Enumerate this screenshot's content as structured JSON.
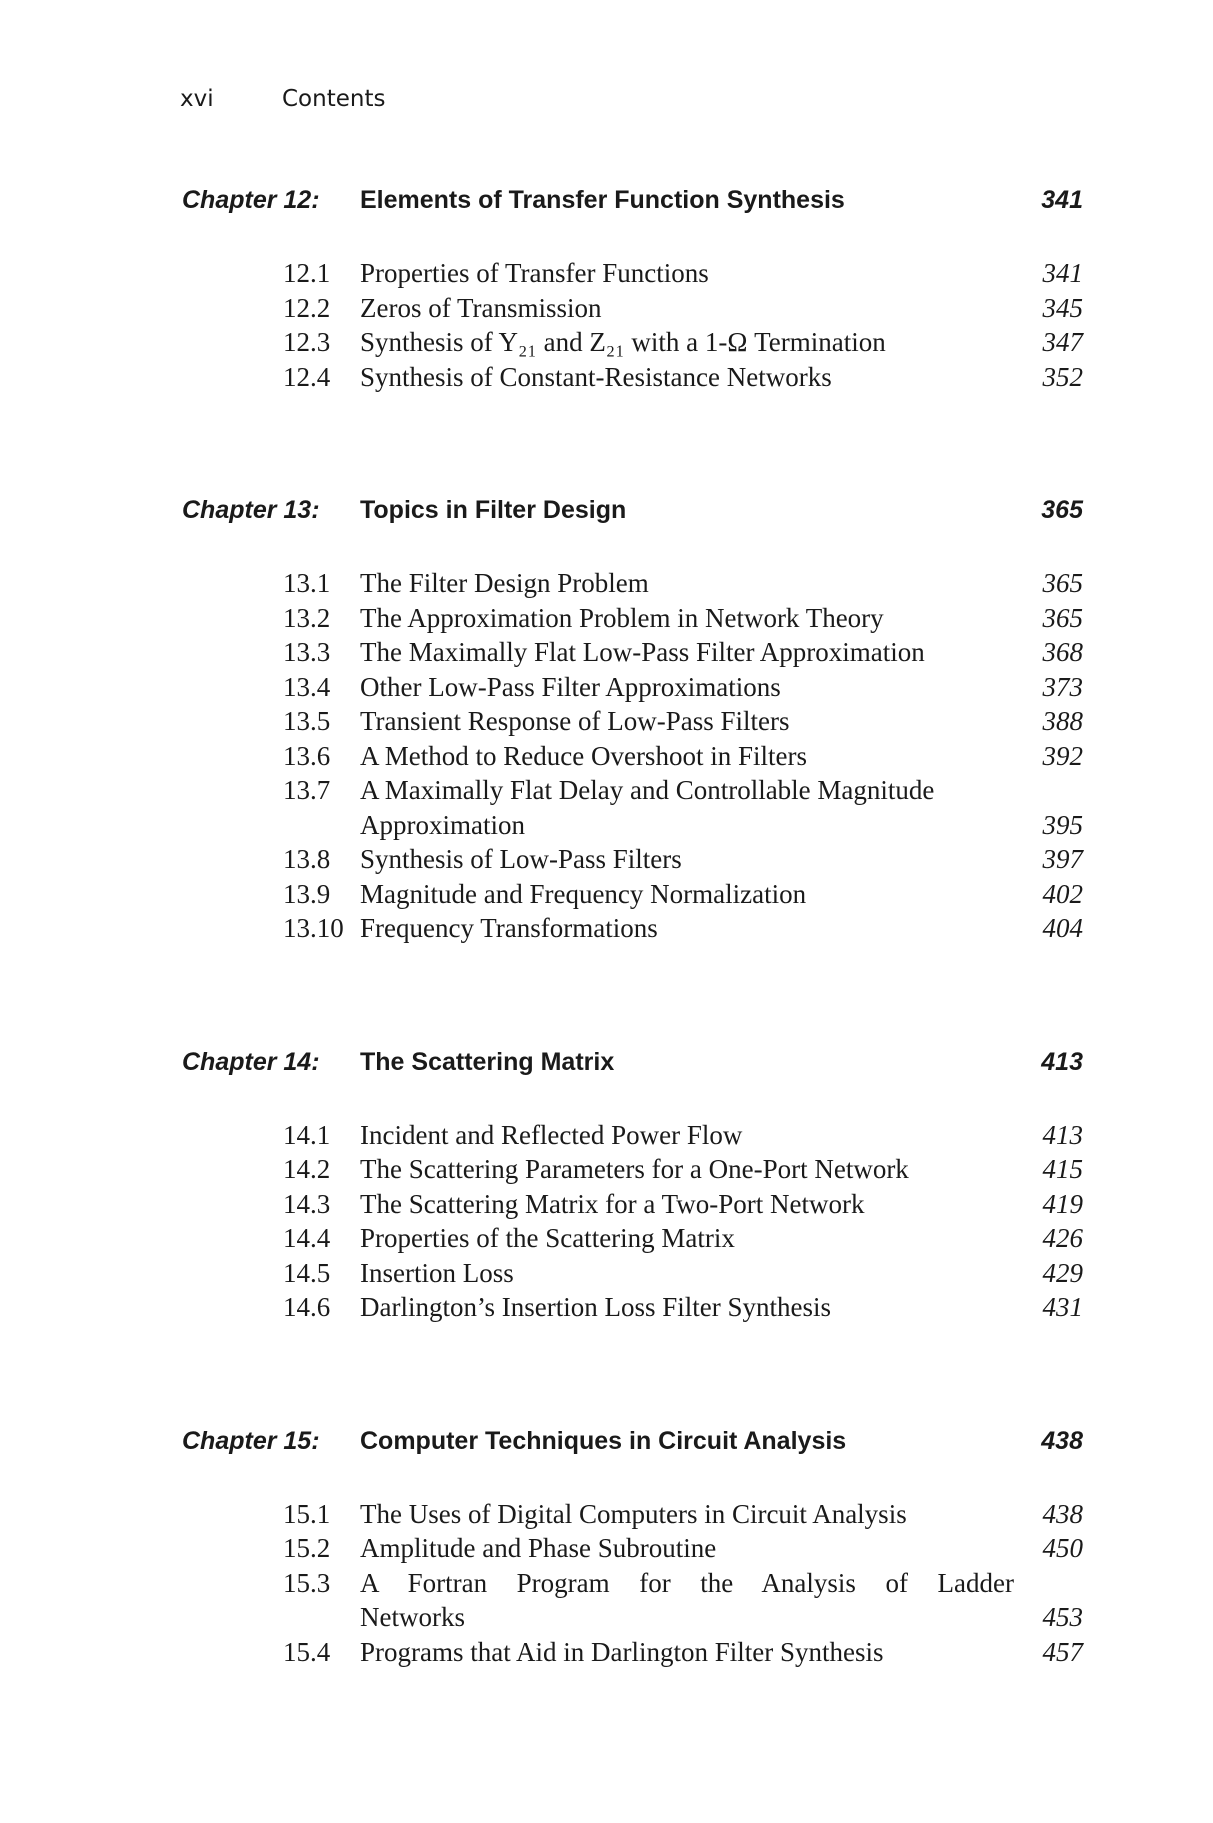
{
  "header": {
    "page_number": "xvi",
    "running_title": "Contents"
  },
  "chapters": [
    {
      "label": "Chapter 12:",
      "title": "Elements of Transfer Function Synthesis",
      "page": "341",
      "sections": [
        {
          "number": "12.1",
          "lines": [
            "Properties of Transfer Functions"
          ],
          "page": "341"
        },
        {
          "number": "12.2",
          "lines": [
            "Zeros of Transmission"
          ],
          "page": "345"
        },
        {
          "number": "12.3",
          "lines": [
            "Synthesis of Y₂₁ and Z₂₁ with a 1-Ω Termination"
          ],
          "page": "347"
        },
        {
          "number": "12.4",
          "lines": [
            "Synthesis of Constant-Resistance Networks"
          ],
          "page": "352"
        }
      ]
    },
    {
      "label": "Chapter 13:",
      "title": "Topics in Filter Design",
      "page": "365",
      "sections": [
        {
          "number": "13.1",
          "lines": [
            "The Filter Design Problem"
          ],
          "page": "365"
        },
        {
          "number": "13.2",
          "lines": [
            "The Approximation Problem in Network Theory"
          ],
          "page": "365"
        },
        {
          "number": "13.3",
          "lines": [
            "The Maximally Flat Low-Pass Filter Approximation"
          ],
          "page": "368"
        },
        {
          "number": "13.4",
          "lines": [
            "Other Low-Pass Filter Approximations"
          ],
          "page": "373"
        },
        {
          "number": "13.5",
          "lines": [
            "Transient Response of Low-Pass Filters"
          ],
          "page": "388"
        },
        {
          "number": "13.6",
          "lines": [
            "A Method to Reduce Overshoot in Filters"
          ],
          "page": "392"
        },
        {
          "number": "13.7",
          "lines": [
            "A Maximally Flat Delay and Controllable Magnitude",
            "Approximation"
          ],
          "page": "395"
        },
        {
          "number": "13.8",
          "lines": [
            "Synthesis of Low-Pass Filters"
          ],
          "page": "397"
        },
        {
          "number": "13.9",
          "lines": [
            "Magnitude and Frequency Normalization"
          ],
          "page": "402"
        },
        {
          "number": "13.10",
          "lines": [
            "Frequency Transformations"
          ],
          "page": "404"
        }
      ]
    },
    {
      "label": "Chapter 14:",
      "title": "The Scattering Matrix",
      "page": "413",
      "sections": [
        {
          "number": "14.1",
          "lines": [
            "Incident and Reflected Power Flow"
          ],
          "page": "413"
        },
        {
          "number": "14.2",
          "lines": [
            "The Scattering Parameters for a One-Port Network"
          ],
          "page": "415"
        },
        {
          "number": "14.3",
          "lines": [
            "The Scattering Matrix for a Two-Port Network"
          ],
          "page": "419"
        },
        {
          "number": "14.4",
          "lines": [
            "Properties of the Scattering Matrix"
          ],
          "page": "426"
        },
        {
          "number": "14.5",
          "lines": [
            "Insertion Loss"
          ],
          "page": "429"
        },
        {
          "number": "14.6",
          "lines": [
            "Darlington’s Insertion Loss Filter Synthesis"
          ],
          "page": "431"
        }
      ]
    },
    {
      "label": "Chapter 15:",
      "title": "Computer Techniques in Circuit Analysis",
      "page": "438",
      "sections": [
        {
          "number": "15.1",
          "lines": [
            "The Uses of Digital Computers in Circuit Analysis"
          ],
          "page": "438"
        },
        {
          "number": "15.2",
          "lines": [
            "Amplitude and Phase Subroutine"
          ],
          "page": "450"
        },
        {
          "number": "15.3",
          "lines": [
            "A Fortran Program for the Analysis of Ladder",
            "Networks"
          ],
          "page": "453"
        },
        {
          "number": "15.4",
          "lines": [
            "Programs that Aid in Darlington Filter Synthesis"
          ],
          "page": "457"
        }
      ]
    }
  ]
}
